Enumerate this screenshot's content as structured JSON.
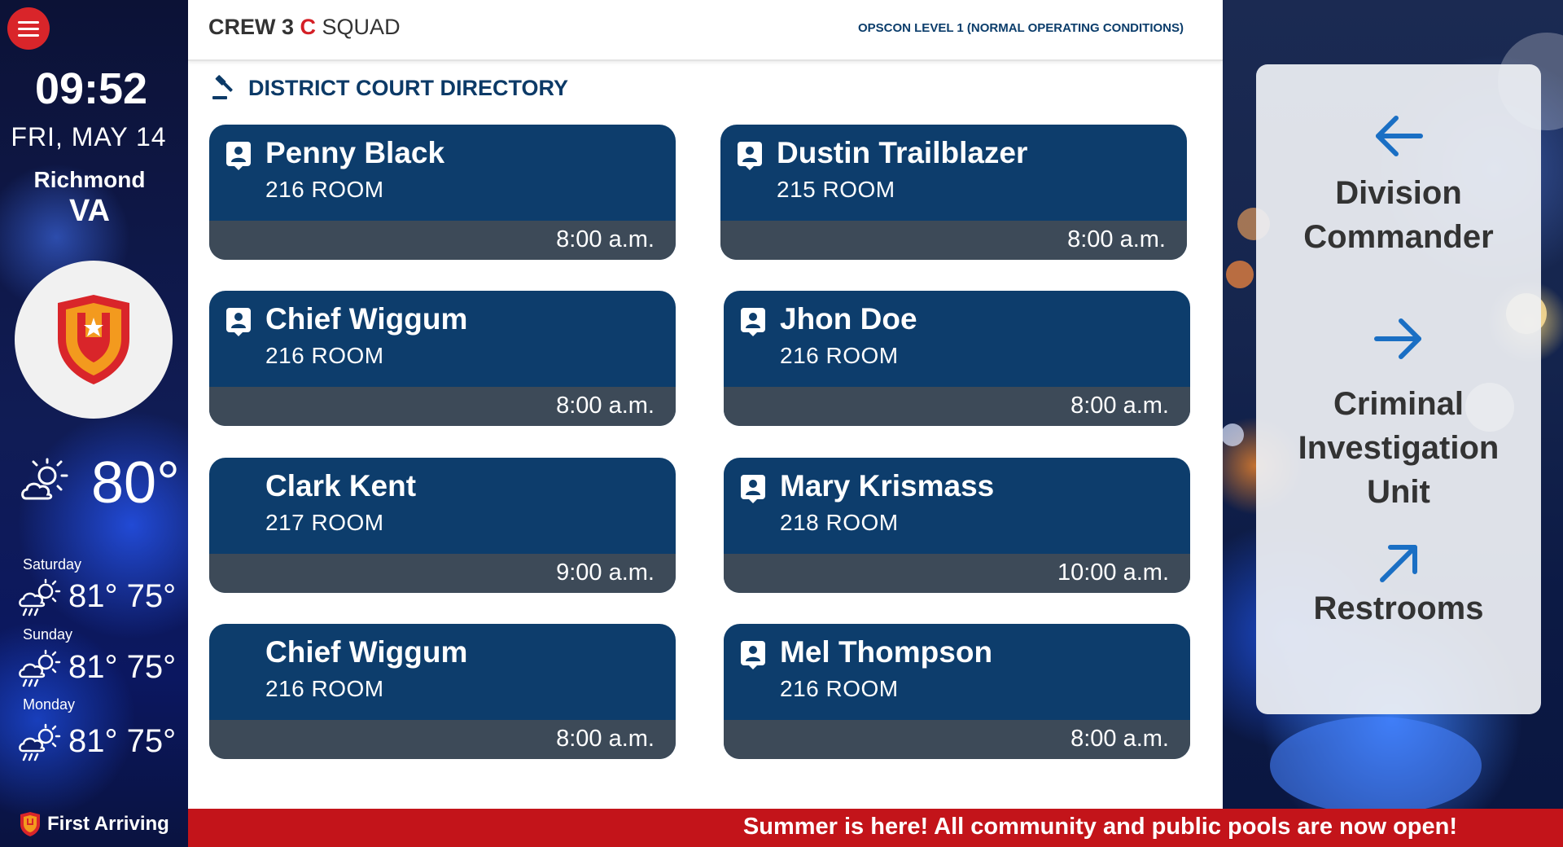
{
  "sidebar": {
    "menu_icon": "hamburger-menu-icon",
    "time": "09:52",
    "date": "FRI, MAY 14",
    "city": "Richmond",
    "state": "VA",
    "logo_icon": "shield-star-icon",
    "current": {
      "icon": "partly-cloudy-icon",
      "temp": "80°"
    },
    "forecast": [
      {
        "day": "Saturday",
        "icon": "rain-sun-icon",
        "temps": "81° 75°"
      },
      {
        "day": "Sunday",
        "icon": "rain-sun-icon",
        "temps": "81° 75°"
      },
      {
        "day": "Monday",
        "icon": "rain-sun-icon",
        "temps": "81° 75°"
      }
    ],
    "brand": {
      "icon": "first-arriving-shield-icon",
      "label": "First Arriving"
    }
  },
  "header": {
    "crew_prefix": "CREW 3",
    "crew_letter": "C",
    "crew_suffix": "SQUAD",
    "opscon": "OPSCON LEVEL 1 (NORMAL OPERATING CONDITIONS)"
  },
  "directory": {
    "icon": "gavel-icon",
    "title": "DISTRICT COURT DIRECTORY",
    "entries": [
      {
        "name": "Penny Black",
        "room": "216 ROOM",
        "time": "8:00 a.m.",
        "badge": true
      },
      {
        "name": "Dustin Trailblazer",
        "room": "215 ROOM",
        "time": "8:00 a.m.",
        "badge": true
      },
      {
        "name": "Chief Wiggum",
        "room": "216 ROOM",
        "time": "8:00 a.m.",
        "badge": true
      },
      {
        "name": "Jhon Doe",
        "room": "216 ROOM",
        "time": "8:00 a.m.",
        "badge": true
      },
      {
        "name": "Clark Kent",
        "room": "217 ROOM",
        "time": "9:00 a.m.",
        "badge": false
      },
      {
        "name": "Mary Krismass",
        "room": "218 ROOM",
        "time": "10:00 a.m.",
        "badge": true
      },
      {
        "name": "Chief Wiggum",
        "room": "216 ROOM",
        "time": "8:00 a.m.",
        "badge": false
      },
      {
        "name": "Mel Thompson",
        "room": "216 ROOM",
        "time": "8:00 a.m.",
        "badge": true
      }
    ]
  },
  "directions": [
    {
      "icon": "arrow-left-icon",
      "label_lines": [
        "Division",
        "Commander"
      ]
    },
    {
      "icon": "arrow-right-icon",
      "label_lines": [
        "Criminal",
        "Investigation",
        "Unit"
      ]
    },
    {
      "icon": "arrow-up-right-icon",
      "label_lines": [
        "Restrooms"
      ]
    }
  ],
  "ticker": {
    "text": "Summer is here!  All community and public pools are now open!"
  },
  "colors": {
    "accent_red": "#d41f26",
    "card_blue": "#0d3d6c",
    "card_time_bar": "#3d4a58",
    "title_blue": "#0c3a67",
    "arrow_blue": "#1a6fc4"
  }
}
